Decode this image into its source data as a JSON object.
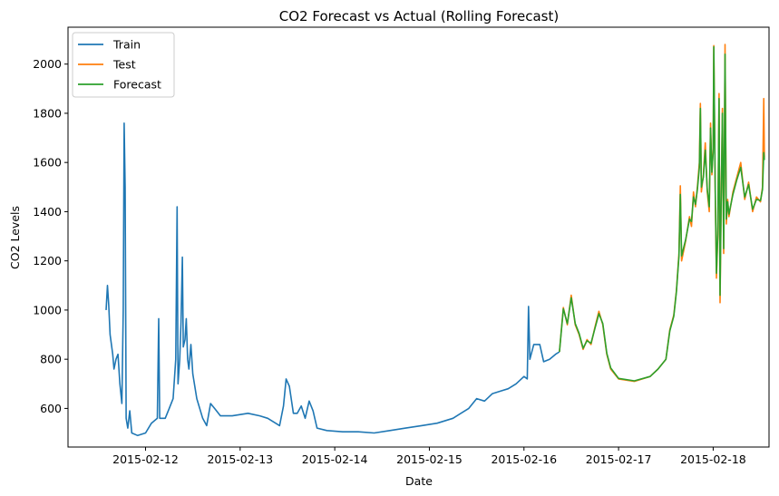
{
  "chart_data": {
    "type": "line",
    "title": "CO2 Forecast vs Actual (Rolling Forecast)",
    "xlabel": "Date",
    "ylabel": "CO2 Levels",
    "x_ticks": [
      "2015-02-12",
      "2015-02-13",
      "2015-02-14",
      "2015-02-15",
      "2015-02-16",
      "2015-02-17",
      "2015-02-18"
    ],
    "y_ticks": [
      600,
      800,
      1000,
      1200,
      1400,
      1600,
      1800,
      2000
    ],
    "xlim": [
      "2015-02-11T04:20",
      "2015-02-18T14:10"
    ],
    "ylim": [
      443,
      2150
    ],
    "grid": false,
    "legend_position": "top-left",
    "series": [
      {
        "name": "Train",
        "color": "#1f77b4",
        "points": [
          [
            "2015-02-11T14:00",
            1000
          ],
          [
            "2015-02-11T14:20",
            1100
          ],
          [
            "2015-02-11T14:40",
            1020
          ],
          [
            "2015-02-11T15:00",
            900
          ],
          [
            "2015-02-11T15:40",
            820
          ],
          [
            "2015-02-11T16:00",
            760
          ],
          [
            "2015-02-11T16:30",
            800
          ],
          [
            "2015-02-11T17:00",
            820
          ],
          [
            "2015-02-11T17:30",
            700
          ],
          [
            "2015-02-11T18:00",
            620
          ],
          [
            "2015-02-11T18:20",
            1000
          ],
          [
            "2015-02-11T18:35",
            1760
          ],
          [
            "2015-02-11T18:50",
            1500
          ],
          [
            "2015-02-11T19:05",
            560
          ],
          [
            "2015-02-11T19:30",
            520
          ],
          [
            "2015-02-11T20:00",
            590
          ],
          [
            "2015-02-11T20:30",
            500
          ],
          [
            "2015-02-11T22:00",
            490
          ],
          [
            "2015-02-12T00:00",
            500
          ],
          [
            "2015-02-12T01:30",
            540
          ],
          [
            "2015-02-12T03:00",
            560
          ],
          [
            "2015-02-12T03:20",
            965
          ],
          [
            "2015-02-12T03:35",
            560
          ],
          [
            "2015-02-12T05:00",
            560
          ],
          [
            "2015-02-12T06:00",
            600
          ],
          [
            "2015-02-12T07:00",
            640
          ],
          [
            "2015-02-12T07:40",
            800
          ],
          [
            "2015-02-12T08:00",
            1420
          ],
          [
            "2015-02-12T08:15",
            700
          ],
          [
            "2015-02-12T08:40",
            800
          ],
          [
            "2015-02-12T09:00",
            950
          ],
          [
            "2015-02-12T09:20",
            1215
          ],
          [
            "2015-02-12T09:35",
            850
          ],
          [
            "2015-02-12T10:00",
            880
          ],
          [
            "2015-02-12T10:20",
            965
          ],
          [
            "2015-02-12T10:40",
            800
          ],
          [
            "2015-02-12T11:00",
            760
          ],
          [
            "2015-02-12T11:30",
            860
          ],
          [
            "2015-02-12T12:00",
            740
          ],
          [
            "2015-02-12T13:00",
            640
          ],
          [
            "2015-02-12T14:30",
            560
          ],
          [
            "2015-02-12T15:30",
            530
          ],
          [
            "2015-02-12T16:30",
            620
          ],
          [
            "2015-02-12T17:30",
            600
          ],
          [
            "2015-02-12T19:00",
            570
          ],
          [
            "2015-02-12T22:00",
            570
          ],
          [
            "2015-02-13T02:00",
            580
          ],
          [
            "2015-02-13T05:00",
            570
          ],
          [
            "2015-02-13T07:00",
            560
          ],
          [
            "2015-02-13T09:00",
            540
          ],
          [
            "2015-02-13T10:00",
            530
          ],
          [
            "2015-02-13T11:00",
            610
          ],
          [
            "2015-02-13T11:40",
            720
          ],
          [
            "2015-02-13T12:30",
            690
          ],
          [
            "2015-02-13T13:30",
            580
          ],
          [
            "2015-02-13T14:30",
            580
          ],
          [
            "2015-02-13T15:30",
            610
          ],
          [
            "2015-02-13T16:30",
            560
          ],
          [
            "2015-02-13T17:30",
            630
          ],
          [
            "2015-02-13T18:30",
            590
          ],
          [
            "2015-02-13T19:30",
            520
          ],
          [
            "2015-02-13T22:00",
            510
          ],
          [
            "2015-02-14T02:00",
            505
          ],
          [
            "2015-02-14T06:00",
            505
          ],
          [
            "2015-02-14T10:00",
            500
          ],
          [
            "2015-02-14T14:00",
            510
          ],
          [
            "2015-02-14T18:00",
            520
          ],
          [
            "2015-02-14T22:00",
            530
          ],
          [
            "2015-02-15T02:00",
            540
          ],
          [
            "2015-02-15T06:00",
            560
          ],
          [
            "2015-02-15T10:00",
            600
          ],
          [
            "2015-02-15T12:00",
            640
          ],
          [
            "2015-02-15T14:00",
            630
          ],
          [
            "2015-02-15T16:00",
            660
          ],
          [
            "2015-02-15T18:00",
            670
          ],
          [
            "2015-02-15T20:00",
            680
          ],
          [
            "2015-02-15T22:00",
            700
          ],
          [
            "2015-02-16T00:00",
            730
          ],
          [
            "2015-02-16T00:50",
            720
          ],
          [
            "2015-02-16T01:10",
            1015
          ],
          [
            "2015-02-16T01:30",
            800
          ],
          [
            "2015-02-16T02:30",
            860
          ],
          [
            "2015-02-16T04:00",
            860
          ],
          [
            "2015-02-16T05:00",
            790
          ],
          [
            "2015-02-16T06:30",
            800
          ],
          [
            "2015-02-16T08:00",
            820
          ],
          [
            "2015-02-16T09:00",
            830
          ]
        ]
      },
      {
        "name": "Test",
        "color": "#ff7f0e",
        "points": [
          [
            "2015-02-16T09:00",
            830
          ],
          [
            "2015-02-16T10:00",
            1010
          ],
          [
            "2015-02-16T11:00",
            940
          ],
          [
            "2015-02-16T12:00",
            1060
          ],
          [
            "2015-02-16T13:00",
            940
          ],
          [
            "2015-02-16T14:00",
            900
          ],
          [
            "2015-02-16T15:00",
            840
          ],
          [
            "2015-02-16T16:00",
            880
          ],
          [
            "2015-02-16T17:00",
            860
          ],
          [
            "2015-02-16T18:00",
            930
          ],
          [
            "2015-02-16T19:00",
            995
          ],
          [
            "2015-02-16T20:00",
            940
          ],
          [
            "2015-02-16T21:00",
            820
          ],
          [
            "2015-02-16T22:00",
            760
          ],
          [
            "2015-02-17T00:00",
            720
          ],
          [
            "2015-02-17T04:00",
            710
          ],
          [
            "2015-02-17T08:00",
            730
          ],
          [
            "2015-02-17T10:00",
            760
          ],
          [
            "2015-02-17T12:00",
            800
          ],
          [
            "2015-02-17T13:00",
            920
          ],
          [
            "2015-02-17T14:00",
            980
          ],
          [
            "2015-02-17T14:40",
            1080
          ],
          [
            "2015-02-17T15:20",
            1230
          ],
          [
            "2015-02-17T15:40",
            1505
          ],
          [
            "2015-02-17T16:00",
            1200
          ],
          [
            "2015-02-17T17:00",
            1280
          ],
          [
            "2015-02-17T18:00",
            1380
          ],
          [
            "2015-02-17T18:30",
            1340
          ],
          [
            "2015-02-17T19:00",
            1480
          ],
          [
            "2015-02-17T19:30",
            1420
          ],
          [
            "2015-02-17T20:00",
            1500
          ],
          [
            "2015-02-17T20:30",
            1600
          ],
          [
            "2015-02-17T20:45",
            1840
          ],
          [
            "2015-02-17T21:00",
            1480
          ],
          [
            "2015-02-17T21:30",
            1550
          ],
          [
            "2015-02-17T22:00",
            1680
          ],
          [
            "2015-02-17T22:30",
            1480
          ],
          [
            "2015-02-17T23:00",
            1400
          ],
          [
            "2015-02-17T23:20",
            1760
          ],
          [
            "2015-02-17T23:40",
            1550
          ],
          [
            "2015-02-18T00:00",
            1660
          ],
          [
            "2015-02-18T00:10",
            2075
          ],
          [
            "2015-02-18T00:30",
            1500
          ],
          [
            "2015-02-18T00:50",
            1130
          ],
          [
            "2015-02-18T01:10",
            1300
          ],
          [
            "2015-02-18T01:30",
            1880
          ],
          [
            "2015-02-18T01:45",
            1030
          ],
          [
            "2015-02-18T02:00",
            1400
          ],
          [
            "2015-02-18T02:20",
            1820
          ],
          [
            "2015-02-18T02:40",
            1230
          ],
          [
            "2015-02-18T03:00",
            2080
          ],
          [
            "2015-02-18T03:20",
            1350
          ],
          [
            "2015-02-18T03:40",
            1450
          ],
          [
            "2015-02-18T04:00",
            1380
          ],
          [
            "2015-02-18T05:00",
            1480
          ],
          [
            "2015-02-18T06:00",
            1540
          ],
          [
            "2015-02-18T07:00",
            1600
          ],
          [
            "2015-02-18T08:00",
            1450
          ],
          [
            "2015-02-18T09:00",
            1520
          ],
          [
            "2015-02-18T10:00",
            1400
          ],
          [
            "2015-02-18T11:00",
            1460
          ],
          [
            "2015-02-18T12:00",
            1440
          ],
          [
            "2015-02-18T12:30",
            1500
          ],
          [
            "2015-02-18T12:50",
            1860
          ],
          [
            "2015-02-18T13:00",
            1620
          ]
        ]
      },
      {
        "name": "Forecast",
        "color": "#2ca02c",
        "points": [
          [
            "2015-02-16T09:00",
            830
          ],
          [
            "2015-02-16T10:00",
            1005
          ],
          [
            "2015-02-16T11:00",
            945
          ],
          [
            "2015-02-16T12:00",
            1050
          ],
          [
            "2015-02-16T13:00",
            945
          ],
          [
            "2015-02-16T14:00",
            905
          ],
          [
            "2015-02-16T15:00",
            845
          ],
          [
            "2015-02-16T16:00",
            875
          ],
          [
            "2015-02-16T17:00",
            865
          ],
          [
            "2015-02-16T18:00",
            925
          ],
          [
            "2015-02-16T19:00",
            985
          ],
          [
            "2015-02-16T20:00",
            945
          ],
          [
            "2015-02-16T21:00",
            825
          ],
          [
            "2015-02-16T22:00",
            765
          ],
          [
            "2015-02-17T00:00",
            722
          ],
          [
            "2015-02-17T04:00",
            712
          ],
          [
            "2015-02-17T08:00",
            730
          ],
          [
            "2015-02-17T10:00",
            760
          ],
          [
            "2015-02-17T12:00",
            800
          ],
          [
            "2015-02-17T13:00",
            915
          ],
          [
            "2015-02-17T14:00",
            975
          ],
          [
            "2015-02-17T14:40",
            1075
          ],
          [
            "2015-02-17T15:20",
            1220
          ],
          [
            "2015-02-17T15:40",
            1470
          ],
          [
            "2015-02-17T16:00",
            1220
          ],
          [
            "2015-02-17T17:00",
            1285
          ],
          [
            "2015-02-17T18:00",
            1370
          ],
          [
            "2015-02-17T18:30",
            1360
          ],
          [
            "2015-02-17T19:00",
            1460
          ],
          [
            "2015-02-17T19:30",
            1430
          ],
          [
            "2015-02-17T20:00",
            1490
          ],
          [
            "2015-02-17T20:30",
            1580
          ],
          [
            "2015-02-17T20:45",
            1820
          ],
          [
            "2015-02-17T21:00",
            1500
          ],
          [
            "2015-02-17T21:30",
            1540
          ],
          [
            "2015-02-17T22:00",
            1650
          ],
          [
            "2015-02-17T22:30",
            1490
          ],
          [
            "2015-02-17T23:00",
            1420
          ],
          [
            "2015-02-17T23:20",
            1740
          ],
          [
            "2015-02-17T23:40",
            1560
          ],
          [
            "2015-02-18T00:00",
            1640
          ],
          [
            "2015-02-18T00:10",
            2070
          ],
          [
            "2015-02-18T00:30",
            1520
          ],
          [
            "2015-02-18T00:50",
            1150
          ],
          [
            "2015-02-18T01:10",
            1310
          ],
          [
            "2015-02-18T01:30",
            1860
          ],
          [
            "2015-02-18T01:45",
            1060
          ],
          [
            "2015-02-18T02:00",
            1410
          ],
          [
            "2015-02-18T02:20",
            1800
          ],
          [
            "2015-02-18T02:40",
            1250
          ],
          [
            "2015-02-18T03:00",
            2040
          ],
          [
            "2015-02-18T03:20",
            1370
          ],
          [
            "2015-02-18T03:40",
            1440
          ],
          [
            "2015-02-18T04:00",
            1390
          ],
          [
            "2015-02-18T05:00",
            1470
          ],
          [
            "2015-02-18T06:00",
            1530
          ],
          [
            "2015-02-18T07:00",
            1580
          ],
          [
            "2015-02-18T08:00",
            1460
          ],
          [
            "2015-02-18T09:00",
            1510
          ],
          [
            "2015-02-18T10:00",
            1410
          ],
          [
            "2015-02-18T11:00",
            1450
          ],
          [
            "2015-02-18T12:00",
            1445
          ],
          [
            "2015-02-18T12:30",
            1490
          ],
          [
            "2015-02-18T12:50",
            1640
          ],
          [
            "2015-02-18T13:00",
            1610
          ]
        ]
      }
    ]
  }
}
